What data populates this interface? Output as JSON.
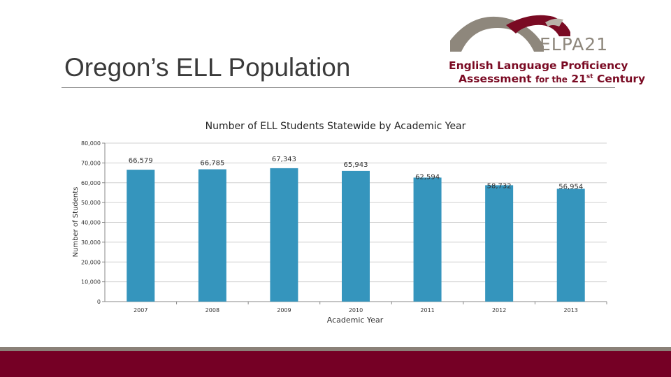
{
  "slide": {
    "title": "Oregon’s ELL Population"
  },
  "logo": {
    "brand": "ELPA21",
    "line1": "English Language Proficiency",
    "line2_a": "Assessment",
    "line2_b": "for the",
    "line2_c": "21",
    "line2_sup": "st",
    "line2_d": "Century"
  },
  "colors": {
    "bar": "#3595bd",
    "brand_red": "#750025",
    "brand_gray": "#8a8178"
  },
  "chart_data": {
    "type": "bar",
    "title": "Number of ELL Students Statewide by Academic Year",
    "xlabel": "Academic Year",
    "ylabel": "Number of Students",
    "categories": [
      "2007",
      "2008",
      "2009",
      "2010",
      "2011",
      "2012",
      "2013"
    ],
    "values": [
      66579,
      66785,
      67343,
      65943,
      62594,
      58732,
      56954
    ],
    "value_labels": [
      "66,579",
      "66,785",
      "67,343",
      "65,943",
      "62,594",
      "58,732",
      "56,954"
    ],
    "ylim": [
      0,
      80000
    ],
    "yticks": [
      0,
      10000,
      20000,
      30000,
      40000,
      50000,
      60000,
      70000,
      80000
    ],
    "ytick_labels": [
      "0",
      "10,000",
      "20,000",
      "30,000",
      "40,000",
      "50,000",
      "60,000",
      "70,000",
      "80,000"
    ],
    "grid": true,
    "legend": "none"
  }
}
